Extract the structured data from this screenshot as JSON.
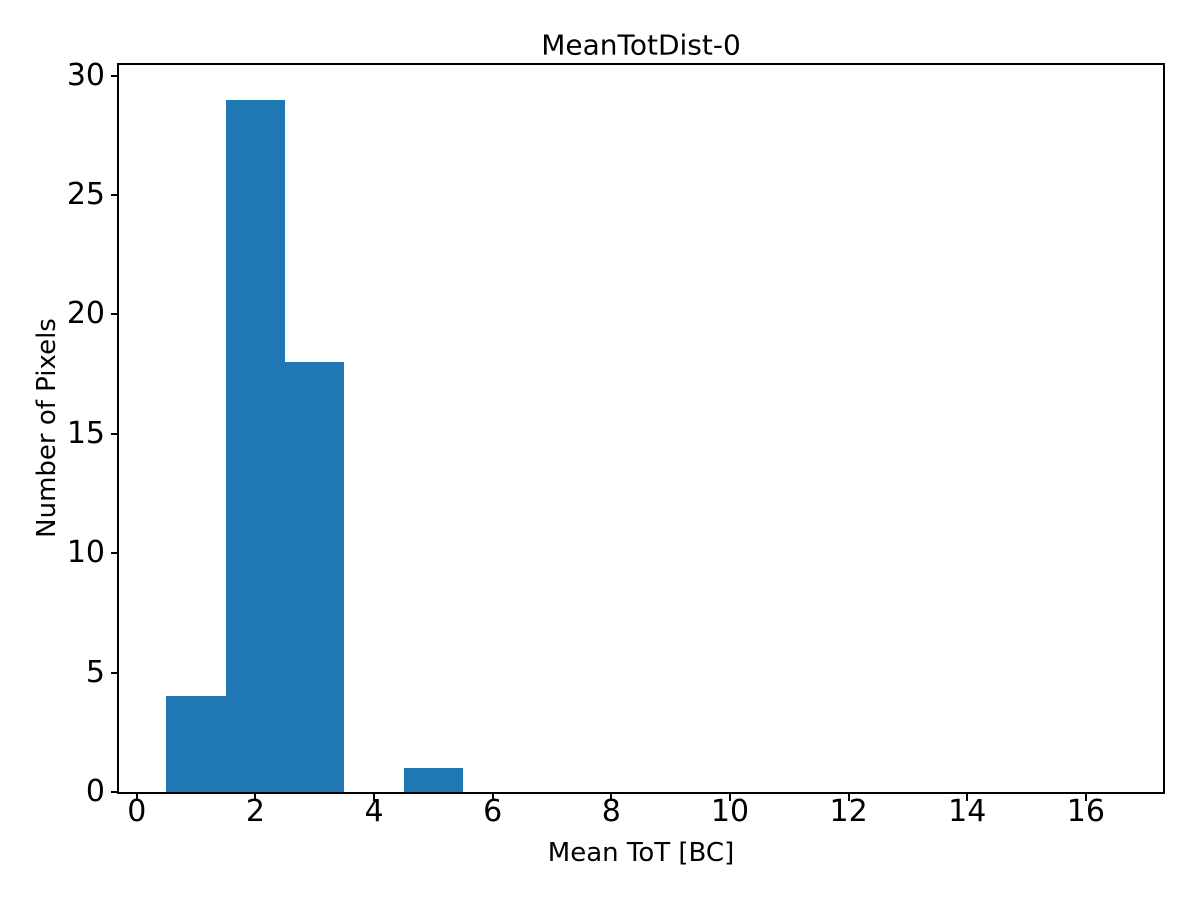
{
  "chart_data": {
    "type": "bar",
    "subtype": "histogram",
    "title": "MeanTotDist-0",
    "xlabel": "Mean ToT [BC]",
    "ylabel": "Number of Pixels",
    "bar_color": "#1f77b4",
    "axis_color": "#000000",
    "text_color": "#000000",
    "background_color": "#ffffff",
    "bins": {
      "start": 0.5,
      "width": 1.0,
      "counts": [
        4,
        29,
        18,
        0,
        1,
        0,
        0,
        0,
        0,
        0,
        0,
        0,
        0,
        0,
        0,
        0
      ]
    },
    "nonzero_bins": [
      {
        "bin": "0.5-1.5",
        "count": 4
      },
      {
        "bin": "1.5-2.5",
        "count": 29
      },
      {
        "bin": "2.5-3.5",
        "count": 18
      },
      {
        "bin": "4.5-5.5",
        "count": 1
      }
    ],
    "xticks": [
      0,
      2,
      4,
      6,
      8,
      10,
      12,
      14,
      16
    ],
    "yticks": [
      0,
      5,
      10,
      15,
      20,
      25,
      30
    ],
    "xlim": [
      -0.3,
      17.3
    ],
    "ylim": [
      0,
      30.45
    ],
    "grid": false,
    "legend": null
  }
}
